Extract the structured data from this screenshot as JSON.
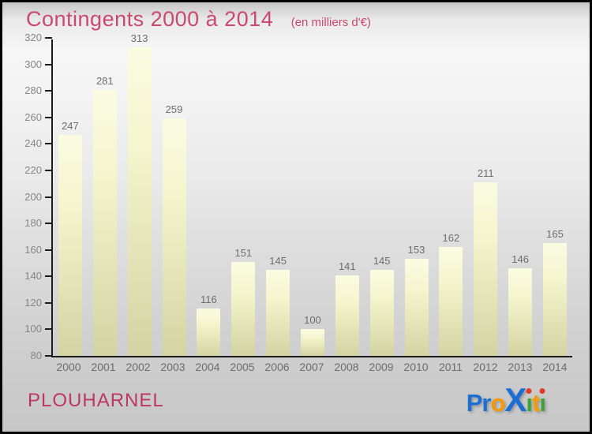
{
  "header": {
    "title": "Contingents 2000 à 2014",
    "subtitle": "(en milliers d'€)"
  },
  "chart_data": {
    "type": "bar",
    "title": "Contingents 2000 à 2014",
    "subtitle": "(en milliers d'€)",
    "categories": [
      "2000",
      "2001",
      "2002",
      "2003",
      "2004",
      "2005",
      "2006",
      "2007",
      "2008",
      "2009",
      "2010",
      "2011",
      "2012",
      "2013",
      "2014"
    ],
    "values": [
      247,
      281,
      313,
      259,
      116,
      151,
      145,
      100,
      141,
      145,
      153,
      162,
      211,
      146,
      165
    ],
    "xlabel": "",
    "ylabel": "",
    "ylim": [
      80,
      320
    ],
    "ytick_step": 20,
    "grid": "off",
    "legend": "none",
    "bar_color_top": "#fbfbe2",
    "bar_color_bottom": "#d3d3a3",
    "value_label_color": "#6d6d6d",
    "tick_label_color": "#868686",
    "axis_color": "#1c1c1c"
  },
  "footer": {
    "location": "PLOUHARNEL",
    "logo_word": "Proxiti",
    "logo_letters": [
      {
        "ch": "P",
        "color": "#1c6fd2",
        "size": "lg"
      },
      {
        "ch": "r",
        "color": "#1c6fd2",
        "size": "lg"
      },
      {
        "ch": "o",
        "color": "#f49a00",
        "size": "lg"
      },
      {
        "ch": "X",
        "color": "#1c6fd2",
        "size": "xl"
      },
      {
        "ch": "ı",
        "color": "#3fa33c",
        "size": "lg",
        "dot": "#e23b2e"
      },
      {
        "ch": "t",
        "color": "#f49a00",
        "size": "lg"
      },
      {
        "ch": "ı",
        "color": "#3fa33c",
        "size": "lg",
        "dot": "#e23b2e"
      }
    ]
  },
  "colors": {
    "title_pink": "#c9496f",
    "location_pink": "#bd3766",
    "frame_border": "#000000"
  }
}
